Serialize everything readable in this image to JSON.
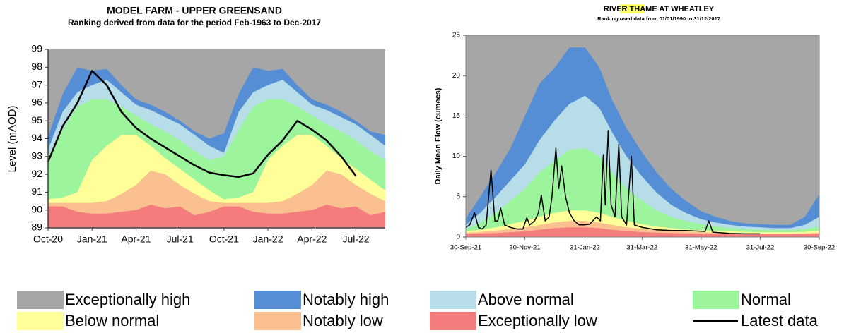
{
  "chart_data": [
    {
      "type": "band",
      "title": "MODEL FARM - UPPER GREENSAND",
      "subtitle": "Ranking derived from data for the period Feb-1963 to Dec-2017",
      "y_label": "Level (mAOD)",
      "categories": [
        "Oct-20",
        null,
        null,
        "Jan-21",
        null,
        null,
        "Apr-21",
        null,
        null,
        "Jul-21",
        null,
        null,
        "Oct-21",
        null,
        null,
        "Jan-22",
        null,
        null,
        "Apr-22",
        null,
        null,
        "Jul-22",
        null,
        null
      ],
      "ylim": [
        89,
        99
      ],
      "yticks": [
        89,
        90,
        91,
        92,
        93,
        94,
        95,
        96,
        97,
        98,
        99
      ],
      "series": [
        {
          "name": "Exceptionally high",
          "color": "#a6a6a6"
        },
        {
          "name": "Notably high",
          "color": "#558ed5",
          "values": [
            94.1,
            96.5,
            98.0,
            97.8,
            97.9,
            97.0,
            96.2,
            95.9,
            95.5,
            95.0,
            94.4,
            94.0,
            94.3,
            96.5,
            98.0,
            97.8,
            97.9,
            97.0,
            96.2,
            95.9,
            95.5,
            95.0,
            94.4,
            94.2
          ]
        },
        {
          "name": "Above normal",
          "color": "#b7dde8",
          "values": [
            93.4,
            95.5,
            96.6,
            97.0,
            97.3,
            96.6,
            95.9,
            95.6,
            95.2,
            94.8,
            94.2,
            93.6,
            93.2,
            95.5,
            96.6,
            97.0,
            97.3,
            96.6,
            95.9,
            95.6,
            95.2,
            94.8,
            94.2,
            93.6
          ]
        },
        {
          "name": "Normal",
          "color": "#9cf59c",
          "values": [
            93.0,
            94.5,
            95.8,
            96.2,
            96.2,
            95.8,
            95.3,
            94.8,
            94.4,
            93.9,
            93.3,
            92.8,
            93.0,
            94.5,
            95.8,
            96.2,
            96.2,
            95.8,
            95.3,
            94.8,
            94.4,
            93.9,
            93.3,
            92.8
          ]
        },
        {
          "name": "Below normal",
          "color": "#ffff99",
          "values": [
            90.6,
            90.7,
            91.0,
            92.8,
            93.6,
            94.2,
            94.2,
            93.6,
            92.9,
            92.3,
            91.7,
            91.1,
            90.6,
            90.7,
            91.0,
            92.8,
            93.6,
            94.2,
            94.2,
            93.6,
            92.9,
            92.3,
            91.7,
            91.1
          ]
        },
        {
          "name": "Notably low",
          "color": "#fac090",
          "values": [
            90.4,
            90.4,
            90.4,
            90.4,
            90.5,
            90.9,
            91.4,
            92.2,
            92.0,
            91.4,
            90.9,
            90.5,
            90.4,
            90.4,
            90.4,
            90.4,
            90.5,
            90.9,
            91.4,
            92.2,
            92.0,
            91.4,
            90.9,
            90.5
          ]
        },
        {
          "name": "Exceptionally low",
          "color": "#f47c7c",
          "values": [
            90.2,
            90.2,
            89.9,
            89.8,
            89.8,
            89.9,
            90.0,
            90.3,
            90.1,
            90.2,
            89.7,
            89.9,
            90.2,
            90.2,
            89.9,
            89.8,
            89.8,
            89.9,
            90.0,
            90.3,
            90.1,
            90.2,
            89.7,
            89.9
          ]
        },
        {
          "name": "Latest data",
          "color": "#000000",
          "values": [
            92.7,
            94.7,
            96.0,
            97.8,
            97.0,
            95.5,
            94.6,
            94.0,
            93.5,
            93.0,
            92.5,
            92.1,
            91.95,
            91.85,
            92.05,
            93.1,
            93.9,
            95.0,
            94.5,
            93.9,
            93.0,
            91.9,
            null,
            null
          ]
        }
      ]
    },
    {
      "type": "band",
      "title": "RIVER THAME AT WHEATLEY",
      "subtitle": "Ranking used data from 01/01/1990 to 31/12/2017",
      "y_label": "Daily Mean Flow (cumecs)",
      "x": [
        "2021-09-30",
        "2021-10-15",
        "2021-10-31",
        "2021-11-15",
        "2021-11-30",
        "2021-12-15",
        "2021-12-31",
        "2022-01-15",
        "2022-01-31",
        "2022-02-15",
        "2022-02-28",
        "2022-03-15",
        "2022-03-31",
        "2022-04-15",
        "2022-04-30",
        "2022-05-15",
        "2022-05-31",
        "2022-06-15",
        "2022-06-30",
        "2022-07-15",
        "2022-07-31",
        "2022-08-15",
        "2022-08-31",
        "2022-09-15",
        "2022-09-30"
      ],
      "xlim": [
        "2021-09-30",
        "2022-09-30"
      ],
      "xticks": [
        {
          "value": "2021-09-30",
          "label": "30-Sep-21"
        },
        {
          "value": "2021-11-30",
          "label": "30-Nov-21"
        },
        {
          "value": "2022-01-31",
          "label": "31-Jan-22"
        },
        {
          "value": "2022-03-31",
          "label": "31-Mar-22"
        },
        {
          "value": "2022-05-31",
          "label": "31-May-22"
        },
        {
          "value": "2022-07-31",
          "label": "31-Jul-22"
        },
        {
          "value": "2022-09-30",
          "label": "30-Sep-22"
        }
      ],
      "ylim": [
        0,
        25
      ],
      "yticks": [
        0,
        5,
        10,
        15,
        20,
        25
      ],
      "series": [
        {
          "color": "#a6a6a6"
        },
        {
          "color": "#558ed5",
          "values": [
            2.3,
            5,
            8,
            11,
            15,
            19,
            21,
            23.5,
            23.5,
            21,
            17,
            13.5,
            10.5,
            8,
            6,
            4.5,
            3.2,
            2.5,
            2,
            1.7,
            1.6,
            1.5,
            1.5,
            2.5,
            5.3
          ]
        },
        {
          "color": "#b7dde8",
          "values": [
            1.5,
            3,
            5,
            7,
            9,
            12,
            14.5,
            16.5,
            17.5,
            16,
            13,
            10,
            7.5,
            5.5,
            4,
            3,
            2.2,
            1.8,
            1.5,
            1.3,
            1.2,
            1.1,
            1.1,
            1.5,
            2.5
          ]
        },
        {
          "color": "#9cf59c",
          "values": [
            1.0,
            1.8,
            3,
            4.5,
            6,
            8,
            9.5,
            10.8,
            11,
            10,
            8,
            6,
            4.5,
            3.3,
            2.5,
            2,
            1.6,
            1.3,
            1.1,
            1.0,
            0.9,
            0.85,
            0.85,
            1.0,
            1.3
          ]
        },
        {
          "color": "#ffff99",
          "values": [
            0.7,
            0.9,
            1.2,
            1.6,
            2.0,
            2.5,
            3.0,
            3.3,
            3.3,
            3.0,
            2.5,
            2.0,
            1.6,
            1.3,
            1.1,
            0.95,
            0.85,
            0.75,
            0.7,
            0.65,
            0.6,
            0.6,
            0.6,
            0.65,
            0.75
          ]
        },
        {
          "color": "#fac090",
          "values": [
            0.55,
            0.65,
            0.8,
            1.0,
            1.2,
            1.5,
            1.8,
            2.0,
            2.0,
            1.8,
            1.5,
            1.2,
            1.0,
            0.85,
            0.75,
            0.68,
            0.6,
            0.55,
            0.5,
            0.48,
            0.45,
            0.45,
            0.45,
            0.48,
            0.55
          ]
        },
        {
          "color": "#f47c7c",
          "values": [
            0.4,
            0.45,
            0.5,
            0.6,
            0.7,
            0.9,
            1.1,
            1.2,
            1.2,
            1.1,
            0.9,
            0.75,
            0.6,
            0.55,
            0.5,
            0.45,
            0.42,
            0.4,
            0.38,
            0.36,
            0.35,
            0.35,
            0.35,
            0.36,
            0.4
          ]
        },
        {
          "color": "#000000",
          "x": [
            "2021-09-30",
            "2021-10-04",
            "2021-10-09",
            "2021-10-13",
            "2021-10-17",
            "2021-10-21",
            "2021-10-26",
            "2021-10-30",
            "2021-11-02",
            "2021-11-05",
            "2021-11-09",
            "2021-11-15",
            "2021-11-22",
            "2021-11-28",
            "2021-12-02",
            "2021-12-05",
            "2021-12-10",
            "2021-12-14",
            "2021-12-17",
            "2021-12-21",
            "2021-12-25",
            "2021-12-28",
            "2022-01-01",
            "2022-01-04",
            "2022-01-07",
            "2022-01-11",
            "2022-01-15",
            "2022-01-20",
            "2022-01-25",
            "2022-01-30",
            "2022-02-05",
            "2022-02-12",
            "2022-02-16",
            "2022-02-19",
            "2022-02-21",
            "2022-02-24",
            "2022-02-27",
            "2022-03-03",
            "2022-03-07",
            "2022-03-10",
            "2022-03-15",
            "2022-03-20",
            "2022-03-23",
            "2022-03-31",
            "2022-04-15",
            "2022-04-30",
            "2022-05-15",
            "2022-06-04",
            "2022-06-08",
            "2022-06-12",
            "2022-06-30",
            "2022-07-15",
            "2022-07-31"
          ],
          "values": [
            1.2,
            1.5,
            3.0,
            1.2,
            1.0,
            1.5,
            8.3,
            2.0,
            2.0,
            3.6,
            1.5,
            1.2,
            1.0,
            1.0,
            2.4,
            1.5,
            2.0,
            3.0,
            5.2,
            2.0,
            2.5,
            5.0,
            11.0,
            6.0,
            8.8,
            5.0,
            3.0,
            2.0,
            1.5,
            1.5,
            1.6,
            2.5,
            2.0,
            10.2,
            4.0,
            13.2,
            4.0,
            2.5,
            11.5,
            2.5,
            1.5,
            10.0,
            1.5,
            1.2,
            0.9,
            0.8,
            0.8,
            0.7,
            2.0,
            0.6,
            0.45,
            0.4,
            0.4
          ]
        }
      ]
    }
  ]
}
